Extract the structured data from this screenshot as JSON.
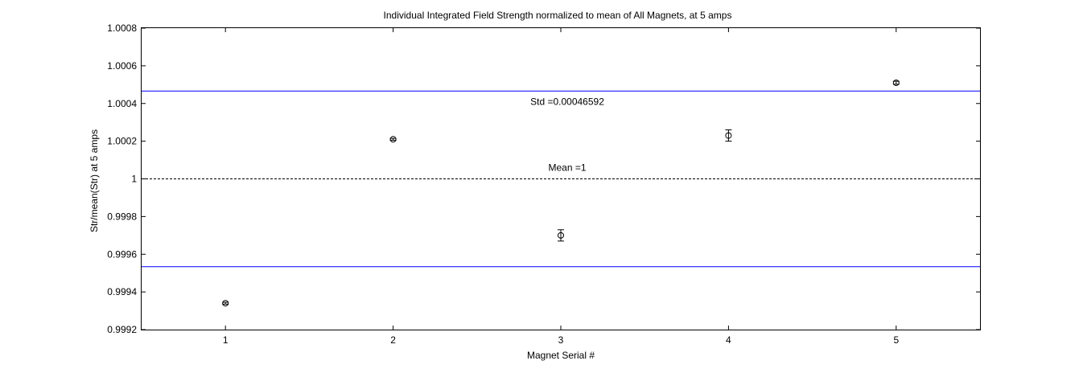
{
  "chart_data": {
    "type": "scatter",
    "title": "Individual Integrated Field Strength normalized to mean of All Magnets, at 5 amps",
    "xlabel": "Magnet Serial #",
    "ylabel": "Str/mean(Str) at 5 amps",
    "xlim": [
      0.5,
      5.5
    ],
    "ylim": [
      0.9992,
      1.0008
    ],
    "xticks": [
      1,
      2,
      3,
      4,
      5
    ],
    "xtick_labels": [
      "1",
      "2",
      "3",
      "4",
      "5"
    ],
    "yticks": [
      0.9992,
      0.9994,
      0.9996,
      0.9998,
      1.0,
      1.0002,
      1.0004,
      1.0006,
      1.0008
    ],
    "ytick_labels": [
      "0.9992",
      "0.9994",
      "0.9996",
      "0.9998",
      "1",
      "1.0002",
      "1.0004",
      "1.0006",
      "1.0008"
    ],
    "grid": false,
    "series": [
      {
        "marker": "circle",
        "error_bars": true,
        "color": "#000000",
        "x": [
          1,
          2,
          3,
          4,
          5
        ],
        "y": [
          0.99934,
          1.00021,
          0.9997,
          1.00023,
          1.00051
        ],
        "err": [
          5e-06,
          5e-06,
          3e-05,
          3e-05,
          8e-06
        ]
      }
    ],
    "reference_lines": [
      {
        "kind": "mean",
        "y": 1.0,
        "style": "dashed",
        "color": "#000000"
      },
      {
        "kind": "upper-std",
        "y": 1.00046592,
        "style": "solid",
        "color": "#0000ff"
      },
      {
        "kind": "lower-std",
        "y": 0.99953408,
        "style": "solid",
        "color": "#0000ff"
      }
    ],
    "annotations": [
      {
        "text": "Std =0.00046592",
        "x": 3.0,
        "y": 1.00041
      },
      {
        "text": "Mean =1",
        "x": 3.0,
        "y": 1.00006
      }
    ]
  }
}
